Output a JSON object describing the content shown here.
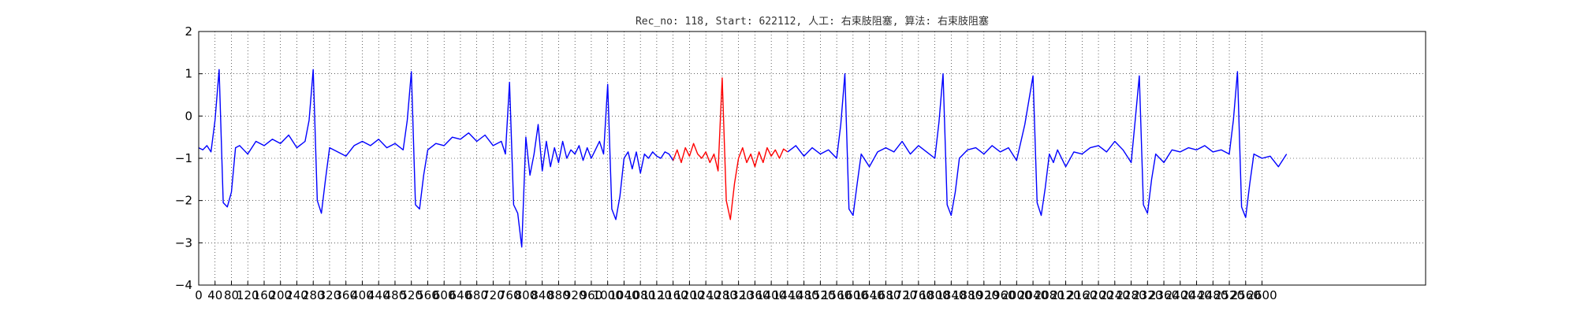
{
  "chart_data": {
    "type": "line",
    "title": "Rec_no: 118, Start: 622112, 人工: 右束肢阻塞, 算法: 右束肢阻塞",
    "xlabel": "",
    "ylabel": "",
    "xlim": [
      0,
      3000
    ],
    "ylim": [
      -4,
      2
    ],
    "grid": true,
    "x_ticks": [
      0,
      40,
      80,
      120,
      160,
      200,
      240,
      280,
      320,
      360,
      400,
      440,
      480,
      520,
      560,
      600,
      640,
      680,
      720,
      760,
      800,
      840,
      880,
      920,
      960,
      1000,
      1040,
      1080,
      1120,
      1160,
      1200,
      1240,
      1280,
      1320,
      1360,
      1400,
      1440,
      1480,
      1520,
      1560,
      1600,
      1640,
      1680,
      1720,
      1760,
      1800,
      1840,
      1880,
      1920,
      1960,
      2000,
      2040,
      2080,
      2120,
      2160,
      2200,
      2240,
      2280,
      2320,
      2360,
      2400,
      2440,
      2480,
      2520,
      2560,
      2600
    ],
    "y_ticks": [
      -4,
      -3,
      -2,
      -1,
      0,
      1,
      2
    ],
    "series": [
      {
        "color": "#0000ff",
        "x": [
          0,
          10,
          20,
          30,
          40,
          50,
          60,
          70,
          80,
          90,
          100,
          110,
          120,
          140,
          160,
          180,
          200,
          220,
          240,
          260,
          270,
          280,
          290,
          300,
          310,
          320,
          340,
          360,
          380,
          400,
          420,
          440,
          460,
          480,
          500,
          510,
          520,
          530,
          540,
          550,
          560,
          580,
          600,
          620,
          640,
          660,
          680,
          700,
          720,
          740,
          750,
          760,
          770,
          780,
          790,
          800,
          810,
          820,
          830,
          840,
          850,
          860,
          870,
          880,
          890,
          900,
          910,
          920,
          930,
          940,
          950,
          960,
          970,
          980,
          990,
          1000,
          1010,
          1020,
          1030,
          1040,
          1050,
          1060,
          1070,
          1080,
          1090,
          1100,
          1110,
          1120,
          1130,
          1140,
          1150,
          1160
        ],
        "y": [
          -0.75,
          -0.8,
          -0.7,
          -0.85,
          -0.1,
          1.1,
          -2.05,
          -2.15,
          -1.8,
          -0.75,
          -0.7,
          -0.8,
          -0.9,
          -0.6,
          -0.7,
          -0.55,
          -0.65,
          -0.45,
          -0.75,
          -0.6,
          -0.1,
          1.1,
          -2.0,
          -2.3,
          -1.5,
          -0.75,
          -0.85,
          -0.95,
          -0.7,
          -0.6,
          -0.7,
          -0.55,
          -0.75,
          -0.65,
          -0.8,
          -0.1,
          1.05,
          -2.1,
          -2.2,
          -1.4,
          -0.8,
          -0.65,
          -0.7,
          -0.5,
          -0.55,
          -0.4,
          -0.6,
          -0.45,
          -0.7,
          -0.6,
          -0.9,
          0.8,
          -2.1,
          -2.3,
          -3.1,
          -0.5,
          -1.4,
          -0.9,
          -0.2,
          -1.3,
          -0.6,
          -1.2,
          -0.75,
          -1.1,
          -0.6,
          -1.0,
          -0.8,
          -0.9,
          -0.7,
          -1.05,
          -0.75,
          -1.0,
          -0.8,
          -0.6,
          -0.9,
          0.75,
          -2.2,
          -2.45,
          -1.9,
          -1.0,
          -0.85,
          -1.25,
          -0.85,
          -1.35,
          -0.9,
          -1.0,
          -0.85,
          -0.95,
          -1.0,
          -0.85,
          -0.9,
          -1.05
        ]
      },
      {
        "color": "#ff0000",
        "x": [
          1160,
          1170,
          1180,
          1190,
          1200,
          1210,
          1220,
          1230,
          1240,
          1250,
          1260,
          1270,
          1280,
          1290,
          1300,
          1310,
          1320,
          1330,
          1340,
          1350,
          1360,
          1370,
          1380,
          1390,
          1400,
          1410,
          1420,
          1430,
          1440
        ],
        "y": [
          -1.05,
          -0.8,
          -1.1,
          -0.75,
          -0.95,
          -0.65,
          -0.9,
          -1.0,
          -0.85,
          -1.1,
          -0.9,
          -1.3,
          0.9,
          -2.0,
          -2.45,
          -1.6,
          -1.0,
          -0.75,
          -1.1,
          -0.9,
          -1.2,
          -0.85,
          -1.1,
          -0.75,
          -0.95,
          -0.8,
          -1.0,
          -0.78,
          -0.85
        ]
      },
      {
        "color": "#0000ff",
        "x": [
          1440,
          1460,
          1480,
          1500,
          1520,
          1540,
          1560,
          1570,
          1580,
          1590,
          1600,
          1610,
          1620,
          1640,
          1660,
          1680,
          1700,
          1720,
          1740,
          1760,
          1780,
          1800,
          1810,
          1820,
          1830,
          1840,
          1850,
          1860,
          1880,
          1900,
          1920,
          1940,
          1960,
          1980,
          2000,
          2020,
          2040,
          2050,
          2060,
          2070,
          2080,
          2090,
          2100,
          2120,
          2140,
          2160,
          2180,
          2200,
          2220,
          2240,
          2260,
          2280,
          2290,
          2300,
          2310,
          2320,
          2330,
          2340,
          2360,
          2380,
          2400,
          2420,
          2440,
          2460,
          2480,
          2500,
          2520,
          2530,
          2540,
          2550,
          2560,
          2570,
          2580,
          2600,
          2620,
          2640,
          2660
        ],
        "y": [
          -0.85,
          -0.7,
          -0.95,
          -0.75,
          -0.9,
          -0.8,
          -1.0,
          -0.2,
          1.0,
          -2.2,
          -2.35,
          -1.6,
          -0.9,
          -1.2,
          -0.85,
          -0.75,
          -0.85,
          -0.6,
          -0.9,
          -0.7,
          -0.85,
          -1.0,
          -0.15,
          1.0,
          -2.1,
          -2.35,
          -1.8,
          -1.0,
          -0.8,
          -0.75,
          -0.9,
          -0.7,
          -0.85,
          -0.75,
          -1.05,
          -0.2,
          0.95,
          -2.05,
          -2.35,
          -1.7,
          -0.9,
          -1.1,
          -0.8,
          -1.2,
          -0.85,
          -0.9,
          -0.75,
          -0.7,
          -0.85,
          -0.6,
          -0.8,
          -1.1,
          -0.1,
          0.95,
          -2.1,
          -2.3,
          -1.5,
          -0.9,
          -1.1,
          -0.8,
          -0.85,
          -0.75,
          -0.8,
          -0.7,
          -0.85,
          -0.8,
          -0.9,
          -0.1,
          1.05,
          -2.15,
          -2.4,
          -1.6,
          -0.9,
          -1.0,
          -0.95,
          -1.2,
          -0.9
        ]
      }
    ]
  }
}
